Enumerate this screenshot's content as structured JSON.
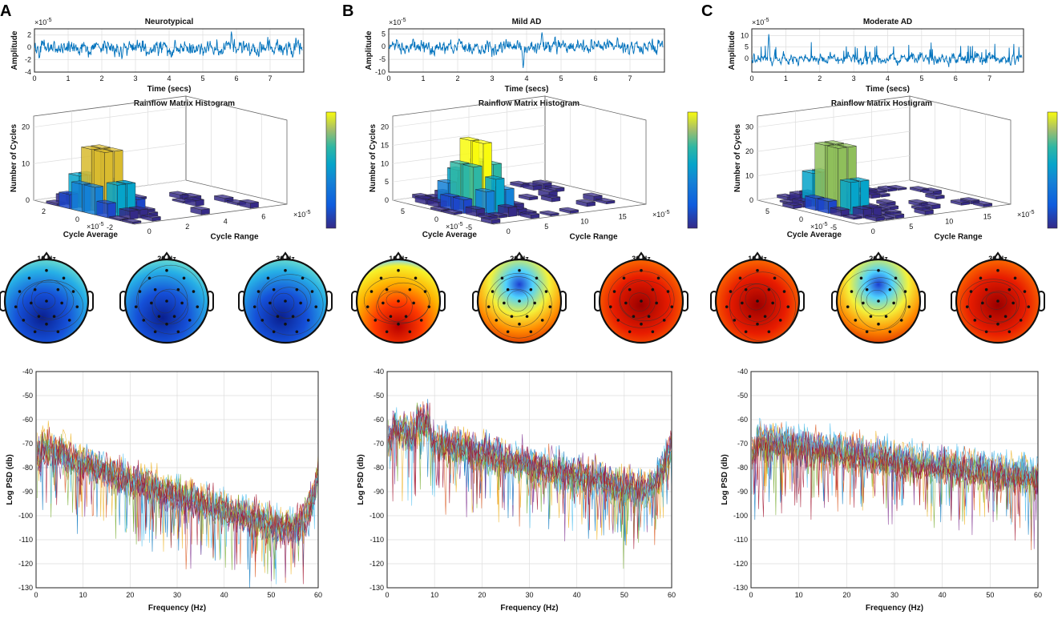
{
  "chart_data": [
    {
      "panel": "A",
      "group": "Neurotypical",
      "time_series": {
        "type": "line",
        "title": "Neurotypical",
        "xlabel": "Time (secs)",
        "ylabel": "Amplitude",
        "exponent": "×10^-5",
        "xlim": [
          0,
          8
        ],
        "ylim": [
          -4,
          3
        ],
        "xticks": [
          0,
          1,
          2,
          3,
          4,
          5,
          6,
          7
        ],
        "yticks": [
          -4,
          -2,
          0,
          2
        ],
        "amplitude": 1.3,
        "spikes": [
          {
            "x": 5.85,
            "y": 2.6
          },
          {
            "x": 2.6,
            "y": -2.2
          }
        ]
      },
      "histogram": {
        "type": "bar3d",
        "title": "Rainflow Matrix Histogram",
        "zlabel": "Number of Cycles",
        "xlabel": "Cycle Range",
        "ylabel": "Cycle Average",
        "zticks": [
          0,
          10,
          20
        ],
        "xticks": [
          "0",
          "2",
          "4",
          "6"
        ],
        "yticks": [
          "2",
          "0",
          "-2"
        ],
        "x_exponent": "×10^-5",
        "y_exponent": "×10^-5",
        "peak": 20
      },
      "topomaps": [
        {
          "freq": "10 Hz",
          "palette": "cool"
        },
        {
          "freq": "20 Hz",
          "palette": "cool"
        },
        {
          "freq": "30 Hz",
          "palette": "cool"
        }
      ],
      "psd": {
        "type": "line",
        "xlabel": "Frequency (Hz)",
        "ylabel": "Log PSD (db)",
        "xlim": [
          0,
          60
        ],
        "ylim": [
          -130,
          -40
        ],
        "xticks": [
          0,
          10,
          20,
          30,
          40,
          50,
          60
        ],
        "yticks": [
          -40,
          -50,
          -60,
          -70,
          -80,
          -90,
          -100,
          -110,
          -120,
          -130
        ],
        "start_db": -68,
        "end_db": -108,
        "tail_rise": 25
      }
    },
    {
      "panel": "B",
      "group": "Mild AD",
      "time_series": {
        "type": "line",
        "title": "Mild AD",
        "xlabel": "Time (secs)",
        "ylabel": "Amplitude",
        "exponent": "×10^-5",
        "xlim": [
          0,
          8
        ],
        "ylim": [
          -10,
          7
        ],
        "xticks": [
          0,
          1,
          2,
          3,
          4,
          5,
          6,
          7
        ],
        "yticks": [
          -10,
          -5,
          0,
          5
        ],
        "amplitude": 3.0,
        "spikes": [
          {
            "x": 3.9,
            "y": -8.5
          },
          {
            "x": 4.45,
            "y": 6.0
          }
        ]
      },
      "histogram": {
        "type": "bar3d",
        "title": "Rainflow Matrix Histogram",
        "zlabel": "Number of Cycles",
        "xlabel": "Cycle Range",
        "ylabel": "Cycle Average",
        "zticks": [
          0,
          5,
          10,
          15,
          20
        ],
        "xticks": [
          "0",
          "5",
          "10",
          "15"
        ],
        "yticks": [
          "5",
          "0",
          "-5"
        ],
        "x_exponent": "×10^-5",
        "y_exponent": "×10^-5",
        "peak": 20
      },
      "topomaps": [
        {
          "freq": "10 Hz",
          "palette": "warm"
        },
        {
          "freq": "20 Hz",
          "palette": "mixed"
        },
        {
          "freq": "30 Hz",
          "palette": "hot"
        }
      ],
      "psd": {
        "type": "line",
        "xlabel": "Frequency (Hz)",
        "ylabel": "Log PSD (db)",
        "xlim": [
          0,
          60
        ],
        "ylim": [
          -130,
          -40
        ],
        "xticks": [
          0,
          10,
          20,
          30,
          40,
          50,
          60
        ],
        "yticks": [
          -40,
          -50,
          -60,
          -70,
          -80,
          -90,
          -100,
          -110,
          -120,
          -130
        ],
        "start_db": -62,
        "end_db": -92,
        "tail_rise": 22
      }
    },
    {
      "panel": "C",
      "group": "Moderate AD",
      "time_series": {
        "type": "line",
        "title": "Moderate AD",
        "xlabel": "Time (secs)",
        "ylabel": "Amplitude",
        "exponent": "×10^-5",
        "xlim": [
          0,
          8
        ],
        "ylim": [
          -6,
          13
        ],
        "xticks": [
          0,
          1,
          2,
          3,
          4,
          5,
          6,
          7
        ],
        "yticks": [
          0,
          5,
          10
        ],
        "amplitude": 2.4,
        "spikes": [
          {
            "x": 0.5,
            "y": 11.5
          },
          {
            "x": 0.6,
            "y": -4.0
          }
        ]
      },
      "histogram": {
        "type": "bar3d",
        "title": "Rainflow Matrix Hostigram",
        "zlabel": "Number of Cycles",
        "xlabel": "Cycle Range",
        "ylabel": "Cycle Average",
        "zticks": [
          0,
          10,
          20,
          30
        ],
        "xticks": [
          "0",
          "5",
          "10",
          "15"
        ],
        "yticks": [
          "5",
          "0",
          "-5"
        ],
        "x_exponent": "×10^-5",
        "y_exponent": "×10^-5",
        "peak": 35
      },
      "topomaps": [
        {
          "freq": "10 Hz",
          "palette": "hot"
        },
        {
          "freq": "20 Hz",
          "palette": "mixed"
        },
        {
          "freq": "30 Hz",
          "palette": "hot"
        }
      ],
      "psd": {
        "type": "line",
        "xlabel": "Frequency (Hz)",
        "ylabel": "Log PSD (db)",
        "xlim": [
          0,
          60
        ],
        "ylim": [
          -130,
          -40
        ],
        "xticks": [
          0,
          10,
          20,
          30,
          40,
          50,
          60
        ],
        "yticks": [
          -40,
          -50,
          -60,
          -70,
          -80,
          -90,
          -100,
          -110,
          -120,
          -130
        ],
        "start_db": -67,
        "end_db": -84,
        "tail_rise": 0
      }
    }
  ],
  "colors": {
    "trace": "#0072bd",
    "psd_palette": [
      "#0072bd",
      "#d95319",
      "#edb120",
      "#7e2f8e",
      "#77ac30",
      "#4dbeee",
      "#a2142f"
    ]
  }
}
